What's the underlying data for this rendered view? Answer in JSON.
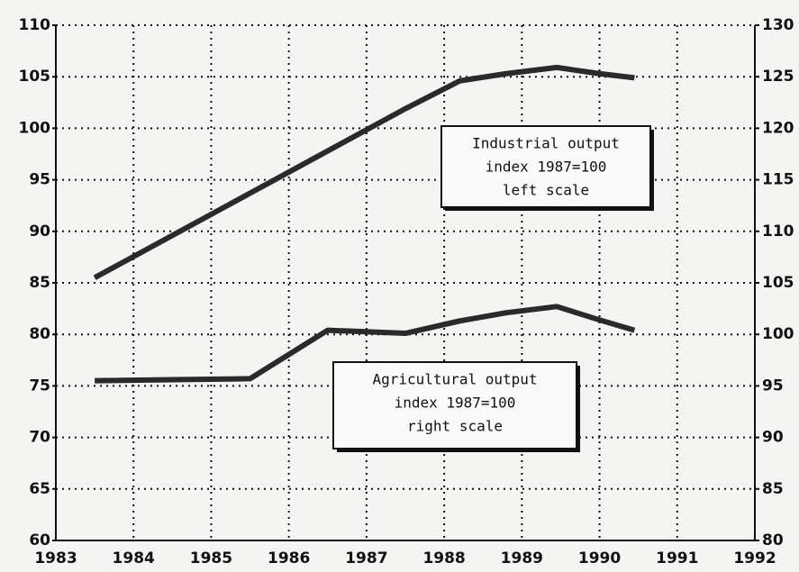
{
  "chart_data": {
    "type": "line",
    "x": [
      1983.5,
      1984.5,
      1985.5,
      1986.5,
      1987.5,
      1988.2,
      1988.8,
      1989.45,
      1990,
      1990.45
    ],
    "series": [
      {
        "name": "Industrial output index 1987=100 left scale",
        "color": "#2a2a2a",
        "axis": "y",
        "values": [
          85.5,
          89.6,
          93.7,
          97.8,
          101.9,
          104.6,
          105.3,
          105.9,
          105.3,
          104.9
        ]
      },
      {
        "name": "Agricultural output index 1987=100 right scale",
        "color": "#2a2a2a",
        "axis": "y2",
        "values": [
          95.5,
          95.6,
          95.7,
          100.4,
          100.1,
          101.3,
          102.1,
          102.7,
          101.4,
          100.4
        ]
      }
    ],
    "xlim": [
      1983,
      1992
    ],
    "xticks": [
      1983,
      1984,
      1985,
      1986,
      1987,
      1988,
      1989,
      1990,
      1991,
      1992
    ],
    "ylim": [
      60,
      110
    ],
    "yticks": [
      60,
      65,
      70,
      75,
      80,
      85,
      90,
      95,
      100,
      105,
      110
    ],
    "y2lim": [
      80,
      130
    ],
    "y2ticks": [
      80,
      85,
      90,
      95,
      100,
      105,
      110,
      115,
      120,
      125,
      130
    ],
    "grid": true,
    "annotations": [
      {
        "lines": [
          "Industrial output",
          "index 1987=100",
          "left scale"
        ]
      },
      {
        "lines": [
          "Agricultural output",
          "index 1987=100",
          "right scale"
        ]
      }
    ]
  }
}
